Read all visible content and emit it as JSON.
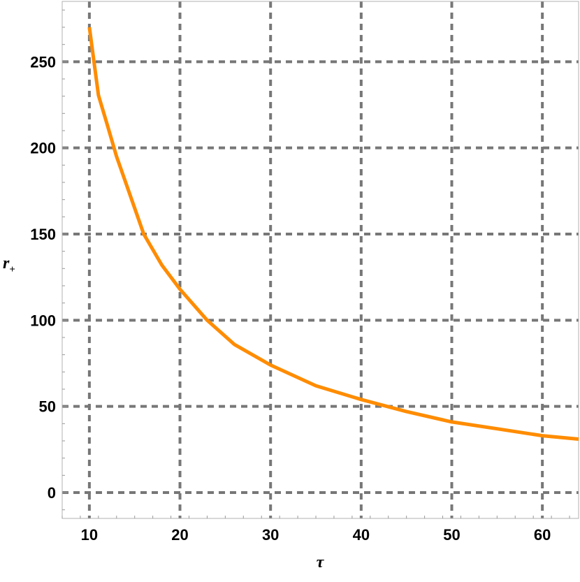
{
  "chart_data": {
    "type": "line",
    "title": "",
    "xlabel": "τ",
    "ylabel": "r",
    "ylabel_subscript": "+",
    "xlim": [
      7,
      64
    ],
    "ylim": [
      -15,
      285
    ],
    "x_ticks": [
      10,
      20,
      30,
      40,
      50,
      60
    ],
    "x_tick_labels": [
      "10",
      "20",
      "30",
      "40",
      "50",
      "60"
    ],
    "y_ticks": [
      0,
      50,
      100,
      150,
      200,
      250
    ],
    "y_tick_labels": [
      "0",
      "50",
      "100",
      "150",
      "200",
      "250"
    ],
    "grid": true,
    "grid_style": "dashed",
    "grid_color": "#777777",
    "series": [
      {
        "color": "#ff8c00",
        "x": [
          10,
          11,
          12,
          13,
          14,
          16,
          18,
          20,
          23,
          26,
          30,
          35,
          40,
          45,
          50,
          55,
          60,
          64
        ],
        "values": [
          270,
          230.5,
          213,
          195,
          180,
          150,
          132,
          118,
          100,
          86,
          74,
          62,
          54,
          47,
          41,
          37,
          33,
          31
        ]
      }
    ]
  }
}
